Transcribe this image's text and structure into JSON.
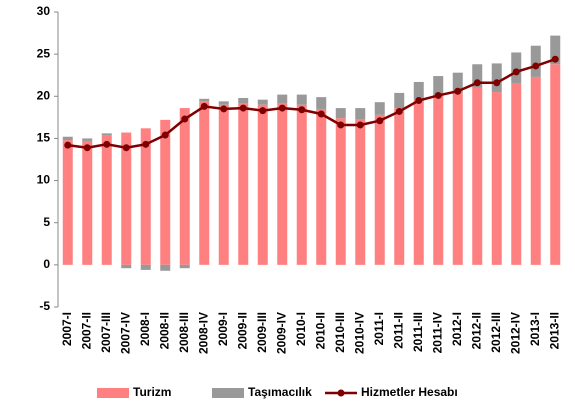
{
  "chart_data": {
    "type": "bar",
    "stacked": true,
    "categories": [
      "2007-I",
      "2007-II",
      "2007-III",
      "2007-IV",
      "2008-I",
      "2008-II",
      "2008-III",
      "2008-IV",
      "2009-I",
      "2009-II",
      "2009-III",
      "2009-IV",
      "2010-I",
      "2010-II",
      "2010-III",
      "2010-IV",
      "2011-I",
      "2011-II",
      "2011-III",
      "2011-IV",
      "2012-I",
      "2012-II",
      "2012-III",
      "2012-IV",
      "2013-I",
      "2013-II"
    ],
    "series": [
      {
        "name": "Turizm",
        "type": "bar",
        "color": "#ff8080",
        "values": [
          14.8,
          14.7,
          15.4,
          15.7,
          16.2,
          17.2,
          18.6,
          19.4,
          19.0,
          19.2,
          19.0,
          19.2,
          19.0,
          18.5,
          17.4,
          17.3,
          17.8,
          18.6,
          19.6,
          20.1,
          20.4,
          21.0,
          20.5,
          21.5,
          22.3,
          23.8
        ]
      },
      {
        "name": "Taşımacılık",
        "type": "bar",
        "color": "#999999",
        "values": [
          0.4,
          0.3,
          0.2,
          -0.4,
          -0.6,
          -0.7,
          -0.4,
          0.3,
          0.4,
          0.6,
          0.6,
          1.0,
          1.2,
          1.4,
          1.2,
          1.3,
          1.5,
          1.8,
          2.1,
          2.3,
          2.4,
          2.8,
          3.4,
          3.7,
          3.7,
          3.4
        ]
      },
      {
        "name": "Hizmetler Hesabı",
        "type": "line",
        "color": "#7f0000",
        "values": [
          14.2,
          13.9,
          14.3,
          13.9,
          14.3,
          15.4,
          17.3,
          18.8,
          18.5,
          18.6,
          18.3,
          18.6,
          18.4,
          17.9,
          16.6,
          16.6,
          17.1,
          18.2,
          19.5,
          20.1,
          20.6,
          21.6,
          21.6,
          22.9,
          23.6,
          24.4
        ]
      }
    ],
    "ylim": [
      -5,
      30
    ],
    "yticks": [
      -5,
      0,
      5,
      10,
      15,
      20,
      25,
      30
    ],
    "grid": false,
    "legend": "bottom"
  }
}
